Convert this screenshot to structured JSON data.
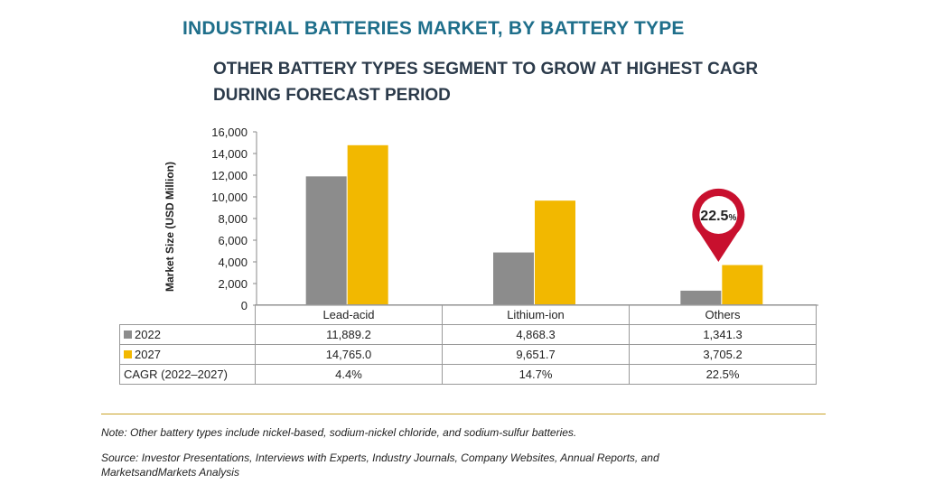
{
  "title": "INDUSTRIAL BATTERIES MARKET, BY BATTERY TYPE",
  "subtitle": "OTHER BATTERY TYPES SEGMENT TO GROW AT HIGHEST CAGR DURING FORECAST PERIOD",
  "chart_data": {
    "type": "bar",
    "ylabel": "Market Size (USD Million)",
    "ylim": [
      0,
      16000
    ],
    "yticks": [
      "0",
      "2,000",
      "4,000",
      "6,000",
      "8,000",
      "10,000",
      "12,000",
      "14,000",
      "16,000"
    ],
    "categories": [
      "Lead-acid",
      "Lithium-ion",
      "Others"
    ],
    "series": [
      {
        "name": "2022",
        "color": "#8c8c8c",
        "values": [
          11889.2,
          4868.3,
          1341.3
        ],
        "labels": [
          "11,889.2",
          "4,868.3",
          "1,341.3"
        ]
      },
      {
        "name": "2027",
        "color": "#f2b800",
        "values": [
          14765.0,
          9651.7,
          3705.2
        ],
        "labels": [
          "14,765.0",
          "9,651.7",
          "3,705.2"
        ]
      }
    ],
    "cagr": {
      "label": "CAGR (2022–2027)",
      "values": [
        "4.4%",
        "14.7%",
        "22.5%"
      ]
    },
    "highlight": {
      "category": "Others",
      "value": "22.5",
      "unit": "%",
      "color": "#c8102e"
    },
    "grid": false
  },
  "note": "Note: Other battery types include nickel-based, sodium-nickel chloride, and sodium-sulfur batteries.",
  "source": "Source: Investor Presentations, Interviews with Experts, Industry Journals, Company Websites, Annual Reports, and MarketsandMarkets Analysis"
}
